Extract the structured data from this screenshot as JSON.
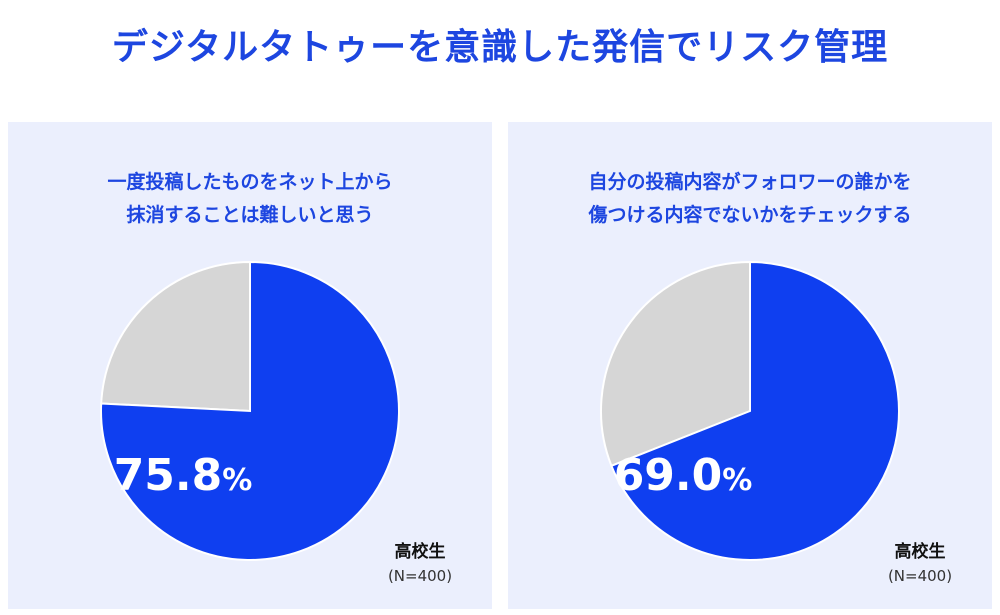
{
  "title": "デジタルタトゥーを意識した発信でリスク管理",
  "colors": {
    "accent": "#1d46e0",
    "slice_main": "#0f3ff0",
    "slice_rest": "#d6d6d6",
    "panel_bg": "#ebeffd"
  },
  "chart_data": [
    {
      "type": "pie",
      "title_lines": [
        "一度投稿したものをネット上から",
        "抹消することは難しいと思う"
      ],
      "value": 75.8,
      "value_label": "75.8",
      "unit": "%",
      "slices": [
        75.8,
        24.2
      ],
      "group": "高校生",
      "n": "(N=400)"
    },
    {
      "type": "pie",
      "title_lines": [
        "自分の投稿内容がフォロワーの誰かを",
        "傷つける内容でないかをチェックする"
      ],
      "value": 69.0,
      "value_label": "69.0",
      "unit": "%",
      "slices": [
        69.0,
        31.0
      ],
      "group": "高校生",
      "n": "(N=400)"
    }
  ]
}
